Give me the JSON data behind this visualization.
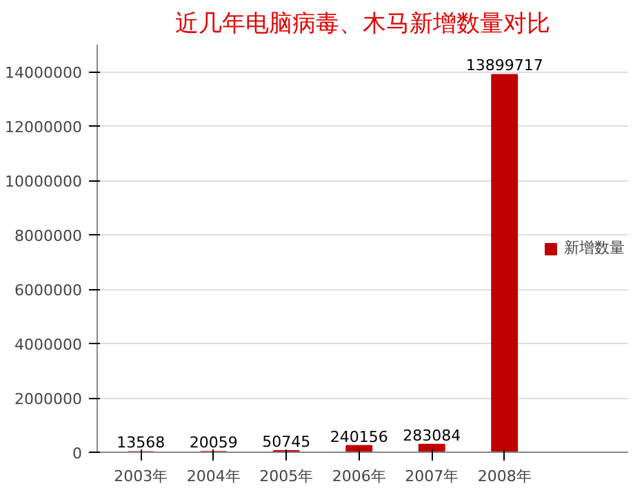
{
  "chart_data": {
    "type": "bar",
    "title": "近几年电脑病毒、木马新增数量对比",
    "categories": [
      "2003年",
      "2004年",
      "2005年",
      "2006年",
      "2007年",
      "2008年"
    ],
    "series": [
      {
        "name": "新增数量",
        "color": "#c00000",
        "values": [
          13568,
          20059,
          50745,
          240156,
          283084,
          13899717
        ]
      }
    ],
    "ylim": [
      0,
      15000000
    ],
    "yticks": [
      0,
      2000000,
      4000000,
      6000000,
      8000000,
      10000000,
      12000000,
      14000000
    ],
    "grid": "y",
    "legend": "right",
    "data_labels": true
  }
}
